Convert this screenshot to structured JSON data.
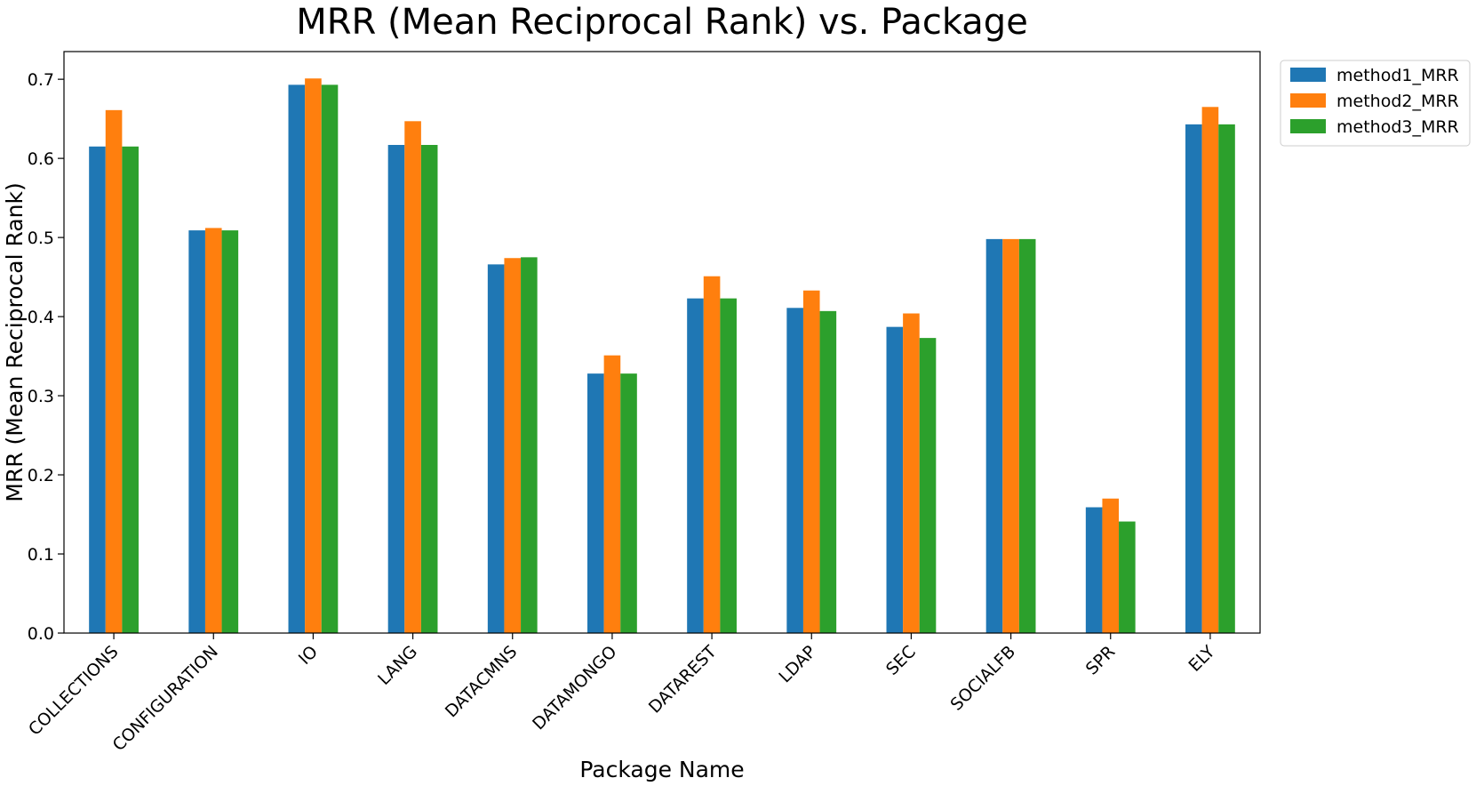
{
  "chart_data": {
    "type": "bar",
    "title": "MRR (Mean Reciprocal Rank) vs. Package",
    "xlabel": "Package Name",
    "ylabel": "MRR (Mean Reciprocal Rank)",
    "ylim": [
      0,
      0.735
    ],
    "yticks": [
      0.0,
      0.1,
      0.2,
      0.3,
      0.4,
      0.5,
      0.6,
      0.7
    ],
    "ytick_labels": [
      "0.0",
      "0.1",
      "0.2",
      "0.3",
      "0.4",
      "0.5",
      "0.6",
      "0.7"
    ],
    "grid": false,
    "legend_position": "outside-top-right",
    "categories": [
      "COLLECTIONS",
      "CONFIGURATION",
      "IO",
      "LANG",
      "DATACMNS",
      "DATAMONGO",
      "DATAREST",
      "LDAP",
      "SEC",
      "SOCIALFB",
      "SPR",
      "ELY"
    ],
    "series": [
      {
        "name": "method1_MRR",
        "color": "#1f77b4",
        "values": [
          0.615,
          0.509,
          0.693,
          0.617,
          0.466,
          0.328,
          0.423,
          0.411,
          0.387,
          0.498,
          0.159,
          0.643
        ]
      },
      {
        "name": "method2_MRR",
        "color": "#ff7f0e",
        "values": [
          0.661,
          0.512,
          0.701,
          0.647,
          0.474,
          0.351,
          0.451,
          0.433,
          0.404,
          0.498,
          0.17,
          0.665
        ]
      },
      {
        "name": "method3_MRR",
        "color": "#2ca02c",
        "values": [
          0.615,
          0.509,
          0.693,
          0.617,
          0.475,
          0.328,
          0.423,
          0.407,
          0.373,
          0.498,
          0.141,
          0.643
        ]
      }
    ]
  }
}
